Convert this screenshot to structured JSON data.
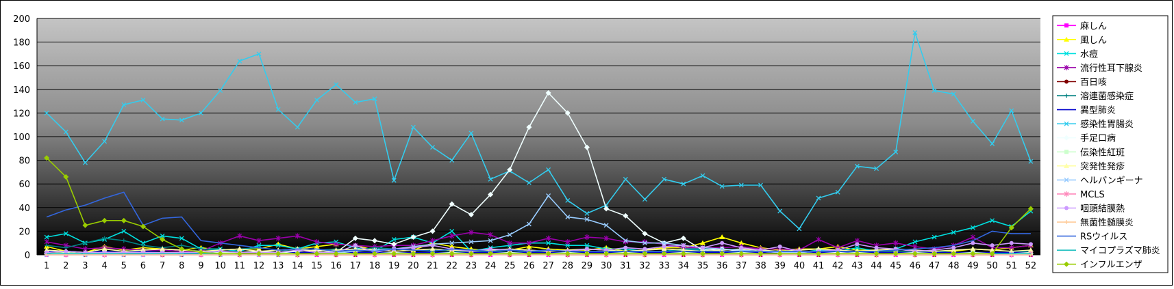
{
  "chart_data": {
    "type": "line",
    "title": "",
    "xlabel": "",
    "ylabel": "",
    "ylim": [
      0,
      200
    ],
    "yticks": [
      0,
      20,
      40,
      60,
      80,
      100,
      120,
      140,
      160,
      180,
      200
    ],
    "grid": true,
    "legend_position": "right",
    "x": [
      "1",
      "2",
      "3",
      "4",
      "5",
      "6",
      "7",
      "8",
      "9",
      "10",
      "11",
      "12",
      "13",
      "14",
      "15",
      "16",
      "17",
      "18",
      "19",
      "20",
      "21",
      "22",
      "23",
      "24",
      "25",
      "26",
      "27",
      "28",
      "29",
      "30",
      "31",
      "32",
      "33",
      "34",
      "35",
      "36",
      "37",
      "38",
      "39",
      "40",
      "41",
      "42",
      "43",
      "44",
      "45",
      "46",
      "47",
      "48",
      "49",
      "50",
      "51",
      "52"
    ],
    "series": [
      {
        "name": "麻しん",
        "color": "#ff00ff",
        "marker": "square",
        "values": [
          0,
          0,
          0,
          0,
          0,
          0,
          0,
          0,
          0,
          0,
          0,
          0,
          0,
          0,
          0,
          0,
          0,
          0,
          0,
          0,
          0,
          0,
          0,
          0,
          0,
          0,
          0,
          0,
          0,
          0,
          0,
          0,
          0,
          0,
          0,
          0,
          0,
          0,
          0,
          0,
          0,
          0,
          0,
          0,
          0,
          0,
          0,
          0,
          0,
          0,
          0,
          0
        ]
      },
      {
        "name": "風しん",
        "color": "#ffff00",
        "marker": "triangle",
        "values": [
          7,
          3,
          2,
          7,
          4,
          6,
          5,
          4,
          6,
          4,
          5,
          5,
          9,
          5,
          7,
          9,
          8,
          4,
          3,
          4,
          10,
          7,
          5,
          3,
          4,
          7,
          5,
          4,
          4,
          6,
          3,
          4,
          6,
          6,
          10,
          15,
          10,
          6,
          4,
          5,
          5,
          7,
          4,
          4,
          3,
          3,
          2,
          3,
          5,
          4,
          6,
          8
        ]
      },
      {
        "name": "水痘",
        "color": "#00e0e0",
        "marker": "x",
        "values": [
          15,
          18,
          10,
          13,
          20,
          10,
          16,
          14,
          5,
          5,
          3,
          8,
          8,
          5,
          10,
          11,
          6,
          3,
          13,
          15,
          10,
          20,
          3,
          6,
          8,
          10,
          10,
          8,
          8,
          5,
          5,
          3,
          3,
          5,
          5,
          3,
          3,
          3,
          2,
          2,
          4,
          3,
          6,
          3,
          5,
          11,
          15,
          19,
          23,
          29,
          24,
          37
        ]
      },
      {
        "name": "流行性耳下腺炎",
        "color": "#9900aa",
        "marker": "star",
        "values": [
          11,
          8,
          5,
          6,
          5,
          4,
          4,
          3,
          3,
          10,
          16,
          12,
          14,
          16,
          11,
          9,
          8,
          7,
          8,
          8,
          12,
          16,
          19,
          17,
          10,
          10,
          14,
          11,
          15,
          14,
          11,
          11,
          9,
          6,
          6,
          6,
          7,
          5,
          5,
          4,
          13,
          6,
          12,
          8,
          10,
          7,
          5,
          8,
          15,
          6,
          6,
          8
        ]
      },
      {
        "name": "百日咳",
        "color": "#800000",
        "marker": "circle",
        "values": [
          1,
          1,
          0,
          1,
          0,
          1,
          0,
          0,
          1,
          0,
          0,
          1,
          0,
          0,
          1,
          0,
          0,
          1,
          0,
          0,
          1,
          0,
          0,
          1,
          0,
          0,
          1,
          0,
          0,
          1,
          0,
          0,
          1,
          0,
          0,
          1,
          0,
          0,
          1,
          0,
          0,
          1,
          0,
          0,
          1,
          0,
          0,
          1,
          0,
          0,
          1,
          0
        ]
      },
      {
        "name": "溶連菌感染症",
        "color": "#008080",
        "marker": "plus",
        "values": [
          8,
          6,
          10,
          14,
          12,
          8,
          6,
          8,
          5,
          4,
          5,
          6,
          4,
          3,
          4,
          5,
          4,
          6,
          5,
          4,
          4,
          3,
          2,
          3,
          2,
          3,
          2,
          2,
          2,
          2,
          3,
          2,
          3,
          4,
          4,
          3,
          3,
          2,
          2,
          2,
          3,
          2,
          3,
          2,
          3,
          3,
          3,
          2,
          2,
          2,
          2,
          3
        ]
      },
      {
        "name": "異型肺炎",
        "color": "#0000cc",
        "marker": "none",
        "values": [
          3,
          3,
          2,
          3,
          2,
          3,
          2,
          2,
          2,
          3,
          2,
          2,
          2,
          2,
          2,
          2,
          2,
          2,
          2,
          2,
          2,
          2,
          2,
          2,
          2,
          2,
          2,
          2,
          2,
          2,
          2,
          2,
          2,
          2,
          2,
          2,
          2,
          2,
          2,
          2,
          2,
          2,
          2,
          2,
          2,
          2,
          2,
          2,
          2,
          2,
          2,
          2
        ]
      },
      {
        "name": "感染性胃腸炎",
        "color": "#33ccee",
        "marker": "x",
        "values": [
          120,
          104,
          78,
          96,
          127,
          131,
          115,
          114,
          120,
          139,
          164,
          170,
          123,
          108,
          131,
          144,
          129,
          132,
          63,
          108,
          91,
          80,
          103,
          64,
          71,
          61,
          72,
          46,
          35,
          42,
          64,
          47,
          64,
          60,
          67,
          58,
          59,
          59,
          37,
          22,
          48,
          53,
          75,
          73,
          87,
          188,
          139,
          136,
          113,
          94,
          122,
          79
        ]
      },
      {
        "name": "手足口病",
        "color": "#f0ffff",
        "marker": "diamond",
        "values": [
          1,
          1,
          1,
          2,
          2,
          2,
          1,
          1,
          1,
          2,
          2,
          3,
          2,
          3,
          4,
          2,
          14,
          12,
          9,
          15,
          20,
          43,
          34,
          51,
          72,
          108,
          137,
          120,
          91,
          39,
          33,
          18,
          10,
          14,
          4,
          5,
          3,
          3,
          2,
          1,
          1,
          2,
          1,
          1,
          1,
          1,
          1,
          1,
          1,
          1,
          1,
          1
        ]
      },
      {
        "name": "伝染性紅斑",
        "color": "#ccffcc",
        "marker": "square",
        "values": [
          1,
          2,
          1,
          2,
          1,
          1,
          2,
          1,
          1,
          2,
          1,
          1,
          2,
          1,
          1,
          2,
          1,
          1,
          2,
          1,
          1,
          2,
          1,
          1,
          2,
          1,
          1,
          2,
          1,
          1,
          2,
          1,
          1,
          2,
          1,
          1,
          2,
          1,
          1,
          2,
          1,
          1,
          2,
          1,
          1,
          2,
          1,
          1,
          2,
          1,
          1,
          2
        ]
      },
      {
        "name": "突発性発疹",
        "color": "#ffffaa",
        "marker": "triangle",
        "values": [
          4,
          3,
          2,
          5,
          3,
          4,
          5,
          4,
          3,
          4,
          5,
          3,
          4,
          5,
          3,
          4,
          5,
          4,
          3,
          4,
          5,
          4,
          3,
          4,
          5,
          4,
          3,
          4,
          5,
          4,
          3,
          4,
          5,
          4,
          3,
          4,
          5,
          4,
          3,
          4,
          5,
          4,
          3,
          4,
          5,
          4,
          3,
          4,
          5,
          4,
          3,
          4
        ]
      },
      {
        "name": "ヘルパンギーナ",
        "color": "#99ccff",
        "marker": "x",
        "values": [
          0,
          0,
          0,
          0,
          0,
          0,
          0,
          0,
          0,
          0,
          0,
          0,
          0,
          0,
          1,
          2,
          3,
          4,
          5,
          7,
          9,
          10,
          11,
          12,
          17,
          26,
          50,
          32,
          30,
          25,
          12,
          10,
          10,
          8,
          6,
          5,
          4,
          3,
          2,
          2,
          1,
          1,
          1,
          1,
          1,
          1,
          1,
          1,
          1,
          1,
          1,
          1
        ]
      },
      {
        "name": "MCLS",
        "color": "#ff88bb",
        "marker": "star",
        "values": [
          1,
          0,
          1,
          0,
          1,
          1,
          0,
          1,
          0,
          1,
          0,
          1,
          1,
          0,
          1,
          0,
          1,
          0,
          1,
          1,
          0,
          1,
          0,
          1,
          0,
          1,
          1,
          0,
          1,
          0,
          1,
          0,
          1,
          1,
          0,
          1,
          0,
          1,
          0,
          1,
          1,
          0,
          1,
          0,
          1,
          0,
          1,
          1,
          0,
          1,
          0,
          1
        ]
      },
      {
        "name": "咽頭結膜熱",
        "color": "#cc99ff",
        "marker": "circle",
        "values": [
          2,
          3,
          2,
          2,
          2,
          2,
          2,
          2,
          2,
          3,
          2,
          2,
          2,
          4,
          2,
          2,
          8,
          2,
          5,
          6,
          8,
          5,
          3,
          5,
          4,
          3,
          4,
          3,
          5,
          4,
          6,
          5,
          7,
          8,
          6,
          10,
          6,
          4,
          7,
          3,
          3,
          4,
          9,
          6,
          5,
          3,
          4,
          6,
          10,
          8,
          10,
          9
        ]
      },
      {
        "name": "無菌性髄膜炎",
        "color": "#ffcc99",
        "marker": "plus",
        "values": [
          0,
          0,
          0,
          0,
          0,
          0,
          0,
          0,
          0,
          0,
          0,
          0,
          0,
          0,
          0,
          0,
          0,
          0,
          0,
          0,
          0,
          0,
          0,
          0,
          0,
          0,
          0,
          0,
          0,
          0,
          0,
          0,
          0,
          0,
          0,
          0,
          0,
          0,
          0,
          0,
          0,
          0,
          0,
          0,
          0,
          0,
          0,
          0,
          0,
          0,
          0,
          0
        ]
      },
      {
        "name": "RSウイルス",
        "color": "#3366dd",
        "marker": "none",
        "values": [
          32,
          38,
          42,
          48,
          53,
          25,
          31,
          32,
          12,
          10,
          8,
          6,
          4,
          5,
          5,
          3,
          4,
          3,
          5,
          4,
          3,
          5,
          4,
          3,
          4,
          3,
          4,
          3,
          3,
          3,
          3,
          3,
          3,
          3,
          3,
          3,
          3,
          3,
          3,
          3,
          3,
          3,
          3,
          3,
          4,
          5,
          6,
          8,
          12,
          20,
          18,
          18
        ]
      },
      {
        "name": "マイコプラズマ肺炎",
        "color": "#20c0c0",
        "marker": "none",
        "values": [
          1,
          1,
          1,
          1,
          1,
          1,
          1,
          1,
          1,
          1,
          1,
          1,
          1,
          1,
          1,
          1,
          1,
          1,
          1,
          1,
          1,
          1,
          1,
          1,
          1,
          1,
          1,
          1,
          1,
          1,
          1,
          1,
          1,
          1,
          1,
          1,
          1,
          1,
          1,
          1,
          1,
          1,
          1,
          1,
          1,
          1,
          1,
          1,
          1,
          1,
          1,
          1
        ]
      },
      {
        "name": "インフルエンザ",
        "color": "#99cc00",
        "marker": "diamond",
        "values": [
          82,
          66,
          25,
          29,
          29,
          24,
          13,
          5,
          2,
          1,
          1,
          1,
          1,
          1,
          1,
          1,
          1,
          1,
          1,
          1,
          1,
          1,
          1,
          1,
          1,
          1,
          1,
          1,
          1,
          1,
          1,
          1,
          1,
          1,
          1,
          1,
          1,
          1,
          1,
          1,
          1,
          1,
          1,
          1,
          1,
          1,
          1,
          1,
          1,
          1,
          23,
          39
        ]
      }
    ]
  }
}
